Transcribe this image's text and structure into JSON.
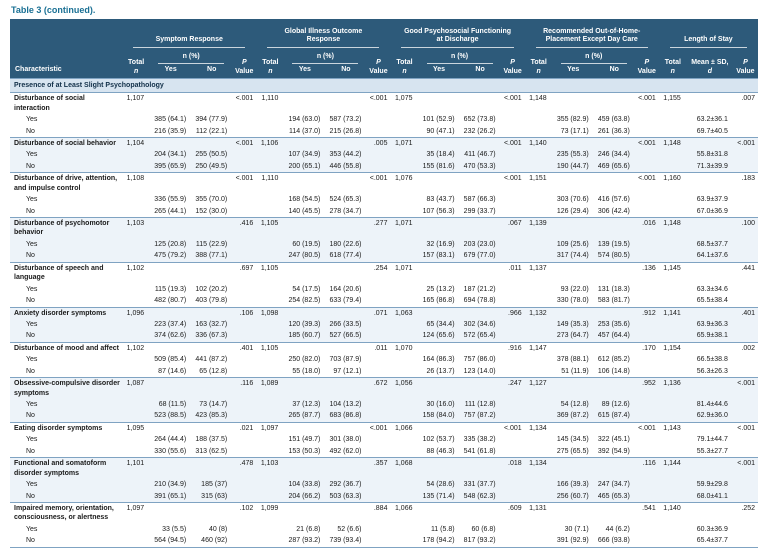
{
  "title": "Table 3 (continued).",
  "colors": {
    "header_bg": "#2d5a7a",
    "section_bg": "#d7e4f0",
    "title_color": "#1a7094",
    "line_color": "#7fa3c2"
  },
  "header": {
    "characteristic": "Characteristic",
    "groups": [
      {
        "label": "Symptom Response"
      },
      {
        "label": "Global Illness Outcome Response"
      },
      {
        "label": "Good Psychosocial Functioning at Discharge"
      },
      {
        "label": "Recommended Out-of-Home-Placement Except Day Care"
      },
      {
        "label": "Length of Stay"
      }
    ],
    "total_top": "Total",
    "total_bot": "n",
    "npct": "n (%)",
    "yes": "Yes",
    "no": "No",
    "p_top": "P",
    "p_bot": "Value",
    "mean_top": "Mean ± SD,",
    "mean_bot": "d"
  },
  "section_header": "Presence of at Least Slight Psychopathology",
  "row_labels": {
    "yes": "Yes",
    "no": "No"
  },
  "rows": [
    {
      "label": "Disturbance of social interaction",
      "groups": [
        {
          "total": "1,107",
          "p": "<.001",
          "yes": [
            "385 (64.1)",
            "394 (77.9)"
          ],
          "no": [
            "216 (35.9)",
            "112 (22.1)"
          ]
        },
        {
          "total": "1,110",
          "p": "<.001",
          "yes": [
            "194 (63.0)",
            "587 (73.2)"
          ],
          "no": [
            "114 (37.0)",
            "215 (26.8)"
          ]
        },
        {
          "total": "1,075",
          "p": "<.001",
          "yes": [
            "101 (52.9)",
            "652 (73.8)"
          ],
          "no": [
            "90 (47.1)",
            "232 (26.2)"
          ]
        },
        {
          "total": "1,148",
          "p": "<.001",
          "yes": [
            "355 (82.9)",
            "459 (63.8)"
          ],
          "no": [
            "73 (17.1)",
            "261 (36.3)"
          ]
        },
        {
          "total": "1,155",
          "p": ".007",
          "yes": "63.2±36.1",
          "no": "69.7±40.5"
        }
      ]
    },
    {
      "label": "Disturbance of social behavior",
      "groups": [
        {
          "total": "1,104",
          "p": "<.001",
          "yes": [
            "204 (34.1)",
            "255 (50.5)"
          ],
          "no": [
            "395 (65.9)",
            "250 (49.5)"
          ]
        },
        {
          "total": "1,106",
          "p": ".005",
          "yes": [
            "107 (34.9)",
            "353 (44.2)"
          ],
          "no": [
            "200 (65.1)",
            "446 (55.8)"
          ]
        },
        {
          "total": "1,071",
          "p": "<.001",
          "yes": [
            "35 (18.4)",
            "411 (46.7)"
          ],
          "no": [
            "155 (81.6)",
            "470 (53.3)"
          ]
        },
        {
          "total": "1,140",
          "p": "<.001",
          "yes": [
            "235 (55.3)",
            "246 (34.4)"
          ],
          "no": [
            "190 (44.7)",
            "469 (65.6)"
          ]
        },
        {
          "total": "1,148",
          "p": "<.001",
          "yes": "55.8±31.8",
          "no": "71.3±39.9"
        }
      ]
    },
    {
      "label": "Disturbance of drive, attention, and impulse control",
      "groups": [
        {
          "total": "1,108",
          "p": "<.001",
          "yes": [
            "336 (55.9)",
            "355 (70.0)"
          ],
          "no": [
            "265 (44.1)",
            "152 (30.0)"
          ]
        },
        {
          "total": "1,110",
          "p": "<.001",
          "yes": [
            "168 (54.5)",
            "524 (65.3)"
          ],
          "no": [
            "140 (45.5)",
            "278 (34.7)"
          ]
        },
        {
          "total": "1,076",
          "p": "<.001",
          "yes": [
            "83 (43.7)",
            "587 (66.3)"
          ],
          "no": [
            "107 (56.3)",
            "299 (33.7)"
          ]
        },
        {
          "total": "1,151",
          "p": "<.001",
          "yes": [
            "303 (70.6)",
            "416 (57.6)"
          ],
          "no": [
            "126 (29.4)",
            "306 (42.4)"
          ]
        },
        {
          "total": "1,160",
          "p": ".183",
          "yes": "63.9±37.9",
          "no": "67.0±36.9"
        }
      ]
    },
    {
      "label": "Disturbance of psychomotor behavior",
      "groups": [
        {
          "total": "1,103",
          "p": ".416",
          "yes": [
            "125 (20.8)",
            "115 (22.9)"
          ],
          "no": [
            "475 (79.2)",
            "388 (77.1)"
          ]
        },
        {
          "total": "1,105",
          "p": ".277",
          "yes": [
            "60 (19.5)",
            "180 (22.6)"
          ],
          "no": [
            "247 (80.5)",
            "618 (77.4)"
          ]
        },
        {
          "total": "1,071",
          "p": ".067",
          "yes": [
            "32 (16.9)",
            "203 (23.0)"
          ],
          "no": [
            "157 (83.1)",
            "679 (77.0)"
          ]
        },
        {
          "total": "1,139",
          "p": ".016",
          "yes": [
            "109 (25.6)",
            "139 (19.5)"
          ],
          "no": [
            "317 (74.4)",
            "574 (80.5)"
          ]
        },
        {
          "total": "1,148",
          "p": ".100",
          "yes": "68.5±37.7",
          "no": "64.1±37.6"
        }
      ]
    },
    {
      "label": "Disturbance of speech and language",
      "groups": [
        {
          "total": "1,102",
          "p": ".697",
          "yes": [
            "115 (19.3)",
            "102 (20.2)"
          ],
          "no": [
            "482 (80.7)",
            "403 (79.8)"
          ]
        },
        {
          "total": "1,105",
          "p": ".254",
          "yes": [
            "54 (17.5)",
            "164 (20.6)"
          ],
          "no": [
            "254 (82.5)",
            "633 (79.4)"
          ]
        },
        {
          "total": "1,071",
          "p": ".011",
          "yes": [
            "25 (13.2)",
            "187 (21.2)"
          ],
          "no": [
            "165 (86.8)",
            "694 (78.8)"
          ]
        },
        {
          "total": "1,137",
          "p": ".136",
          "yes": [
            "93 (22.0)",
            "131 (18.3)"
          ],
          "no": [
            "330 (78.0)",
            "583 (81.7)"
          ]
        },
        {
          "total": "1,145",
          "p": ".441",
          "yes": "63.3±34.6",
          "no": "65.5±38.4"
        }
      ]
    },
    {
      "label": "Anxiety disorder symptoms",
      "groups": [
        {
          "total": "1,096",
          "p": ".106",
          "yes": [
            "223 (37.4)",
            "163 (32.7)"
          ],
          "no": [
            "374 (62.6)",
            "336 (67.3)"
          ]
        },
        {
          "total": "1,098",
          "p": ".071",
          "yes": [
            "120 (39.3)",
            "266 (33.5)"
          ],
          "no": [
            "185 (60.7)",
            "527 (66.5)"
          ]
        },
        {
          "total": "1,063",
          "p": ".966",
          "yes": [
            "65 (34.4)",
            "302 (34.6)"
          ],
          "no": [
            "124 (65.6)",
            "572 (65.4)"
          ]
        },
        {
          "total": "1,132",
          "p": ".912",
          "yes": [
            "149 (35.3)",
            "253 (35.6)"
          ],
          "no": [
            "273 (64.7)",
            "457 (64.4)"
          ]
        },
        {
          "total": "1,141",
          "p": ".401",
          "yes": "63.9±36.3",
          "no": "65.9±38.1"
        }
      ]
    },
    {
      "label": "Disturbance of mood and affect",
      "groups": [
        {
          "total": "1,102",
          "p": ".401",
          "yes": [
            "509 (85.4)",
            "441 (87.2)"
          ],
          "no": [
            "87 (14.6)",
            "65 (12.8)"
          ]
        },
        {
          "total": "1,105",
          "p": ".011",
          "yes": [
            "250 (82.0)",
            "703 (87.9)"
          ],
          "no": [
            "55 (18.0)",
            "97 (12.1)"
          ]
        },
        {
          "total": "1,070",
          "p": ".916",
          "yes": [
            "164 (86.3)",
            "757 (86.0)"
          ],
          "no": [
            "26 (13.7)",
            "123 (14.0)"
          ]
        },
        {
          "total": "1,147",
          "p": ".170",
          "yes": [
            "378 (88.1)",
            "612 (85.2)"
          ],
          "no": [
            "51 (11.9)",
            "106 (14.8)"
          ]
        },
        {
          "total": "1,154",
          "p": ".002",
          "yes": "66.5±38.8",
          "no": "56.3±26.3"
        }
      ]
    },
    {
      "label": "Obsessive-compulsive disorder symptoms",
      "groups": [
        {
          "total": "1,087",
          "p": ".116",
          "yes": [
            "68 (11.5)",
            "73 (14.7)"
          ],
          "no": [
            "523 (88.5)",
            "423 (85.3)"
          ]
        },
        {
          "total": "1,089",
          "p": ".672",
          "yes": [
            "37 (12.3)",
            "104 (13.2)"
          ],
          "no": [
            "265 (87.7)",
            "683 (86.8)"
          ]
        },
        {
          "total": "1,056",
          "p": ".247",
          "yes": [
            "30 (16.0)",
            "111 (12.8)"
          ],
          "no": [
            "158 (84.0)",
            "757 (87.2)"
          ]
        },
        {
          "total": "1,127",
          "p": ".952",
          "yes": [
            "54 (12.8)",
            "89 (12.6)"
          ],
          "no": [
            "369 (87.2)",
            "615 (87.4)"
          ]
        },
        {
          "total": "1,136",
          "p": "<.001",
          "yes": "81.4±44.6",
          "no": "62.9±36.0"
        }
      ]
    },
    {
      "label": "Eating disorder symptoms",
      "groups": [
        {
          "total": "1,095",
          "p": ".021",
          "yes": [
            "264 (44.4)",
            "188 (37.5)"
          ],
          "no": [
            "330 (55.6)",
            "313 (62.5)"
          ]
        },
        {
          "total": "1,097",
          "p": "<.001",
          "yes": [
            "151 (49.7)",
            "301 (38.0)"
          ],
          "no": [
            "153 (50.3)",
            "492 (62.0)"
          ]
        },
        {
          "total": "1,066",
          "p": "<.001",
          "yes": [
            "102 (53.7)",
            "335 (38.2)"
          ],
          "no": [
            "88 (46.3)",
            "541 (61.8)"
          ]
        },
        {
          "total": "1,134",
          "p": "<.001",
          "yes": [
            "145 (34.5)",
            "322 (45.1)"
          ],
          "no": [
            "275 (65.5)",
            "392 (54.9)"
          ]
        },
        {
          "total": "1,143",
          "p": "<.001",
          "yes": "79.1±44.7",
          "no": "55.3±27.7"
        }
      ]
    },
    {
      "label": "Functional and somatoform disorder symptoms",
      "groups": [
        {
          "total": "1,101",
          "p": ".478",
          "yes": [
            "210 (34.9)",
            "185 (37)"
          ],
          "no": [
            "391 (65.1)",
            "315 (63)"
          ]
        },
        {
          "total": "1,103",
          "p": ".357",
          "yes": [
            "104 (33.8)",
            "292 (36.7)"
          ],
          "no": [
            "204 (66.2)",
            "503 (63.3)"
          ]
        },
        {
          "total": "1,068",
          "p": ".018",
          "yes": [
            "54 (28.6)",
            "331 (37.7)"
          ],
          "no": [
            "135 (71.4)",
            "548 (62.3)"
          ]
        },
        {
          "total": "1,134",
          "p": ".116",
          "yes": [
            "166 (39.3)",
            "247 (34.7)"
          ],
          "no": [
            "256 (60.7)",
            "465 (65.3)"
          ]
        },
        {
          "total": "1,144",
          "p": "<.001",
          "yes": "59.9±29.8",
          "no": "68.0±41.1"
        }
      ]
    },
    {
      "label": "Impaired memory, orientation, consciousness, or alertness",
      "groups": [
        {
          "total": "1,097",
          "p": ".102",
          "yes": [
            "33 (5.5)",
            "40 (8)"
          ],
          "no": [
            "564 (94.5)",
            "460 (92)"
          ]
        },
        {
          "total": "1,099",
          "p": ".884",
          "yes": [
            "21 (6.8)",
            "52 (6.6)"
          ],
          "no": [
            "287 (93.2)",
            "739 (93.4)"
          ]
        },
        {
          "total": "1,066",
          "p": ".609",
          "yes": [
            "11 (5.8)",
            "60 (6.8)"
          ],
          "no": [
            "178 (94.2)",
            "817 (93.2)"
          ]
        },
        {
          "total": "1,131",
          "p": ".541",
          "yes": [
            "30 (7.1)",
            "44 (6.2)"
          ],
          "no": [
            "391 (92.9)",
            "666 (93.8)"
          ]
        },
        {
          "total": "1,140",
          "p": ".252",
          "yes": "60.3±36.9",
          "no": "65.4±37.7"
        }
      ]
    }
  ]
}
